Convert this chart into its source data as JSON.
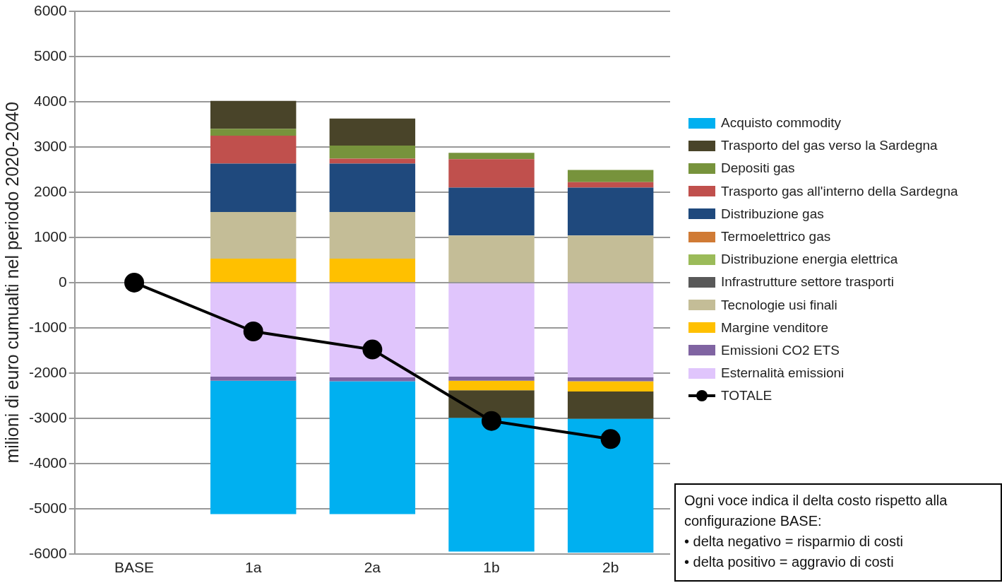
{
  "chart_data": {
    "type": "bar",
    "stacked": true,
    "ylabel": "milioni di euro cumualti nel periodo 2020-2040",
    "categories": [
      "BASE",
      "1a",
      "2a",
      "1b",
      "2b"
    ],
    "ylim": [
      -6000,
      6000
    ],
    "yticks": [
      -6000,
      -5000,
      -4000,
      -3000,
      -2000,
      -1000,
      0,
      1000,
      2000,
      3000,
      4000,
      5000,
      6000
    ],
    "grid": "y",
    "legend": "right",
    "series": [
      {
        "name": "Esternalità emissioni",
        "color": "#e0c5fc",
        "values": [
          null,
          -2080,
          -2090,
          -2080,
          -2090
        ]
      },
      {
        "name": "Emissioni CO2 ETS",
        "color": "#8064a2",
        "values": [
          null,
          -90,
          -90,
          -90,
          -90
        ]
      },
      {
        "name": "Margine venditore",
        "color": "#ffc000",
        "values": [
          null,
          530,
          530,
          -210,
          -230
        ]
      },
      {
        "name": "Tecnologie usi finali",
        "color": "#c4bd97",
        "values": [
          null,
          1030,
          1030,
          1040,
          1040
        ]
      },
      {
        "name": "Infrastrutture settore trasporti",
        "color": "#595959",
        "values": [
          null,
          null,
          null,
          null,
          null
        ]
      },
      {
        "name": "Distribuzione energia elettrica",
        "color": "#9bbb59",
        "values": [
          null,
          null,
          null,
          null,
          null
        ]
      },
      {
        "name": "Termoelettrico gas",
        "color": "#d07b35",
        "values": [
          null,
          null,
          null,
          null,
          null
        ]
      },
      {
        "name": "Distribuzione gas",
        "color": "#1f497d",
        "values": [
          null,
          1070,
          1070,
          1060,
          1060
        ]
      },
      {
        "name": "Trasporto gas all'interno della Sardegna",
        "color": "#c0504d",
        "values": [
          null,
          620,
          110,
          630,
          120
        ]
      },
      {
        "name": "Depositi gas",
        "color": "#77933c",
        "values": [
          null,
          150,
          290,
          140,
          270
        ]
      },
      {
        "name": "Trasporto del gas verso la Sardegna",
        "color": "#494429",
        "values": [
          null,
          620,
          600,
          -610,
          -600
        ]
      },
      {
        "name": "Acquisto commodity",
        "color": "#00b0f0",
        "values": [
          null,
          -2950,
          -2940,
          -2960,
          -2960
        ]
      },
      {
        "name": "TOTALE",
        "type": "line",
        "color": "#000000",
        "marker": "circle",
        "values": [
          0,
          -1080,
          -1480,
          -3060,
          -3460
        ]
      }
    ],
    "annotations": [
      "Ogni voce indica il delta costo rispetto alla configurazione BASE:",
      "• delta negativo = risparmio di costi",
      "• delta positivo = aggravio di costi"
    ]
  }
}
